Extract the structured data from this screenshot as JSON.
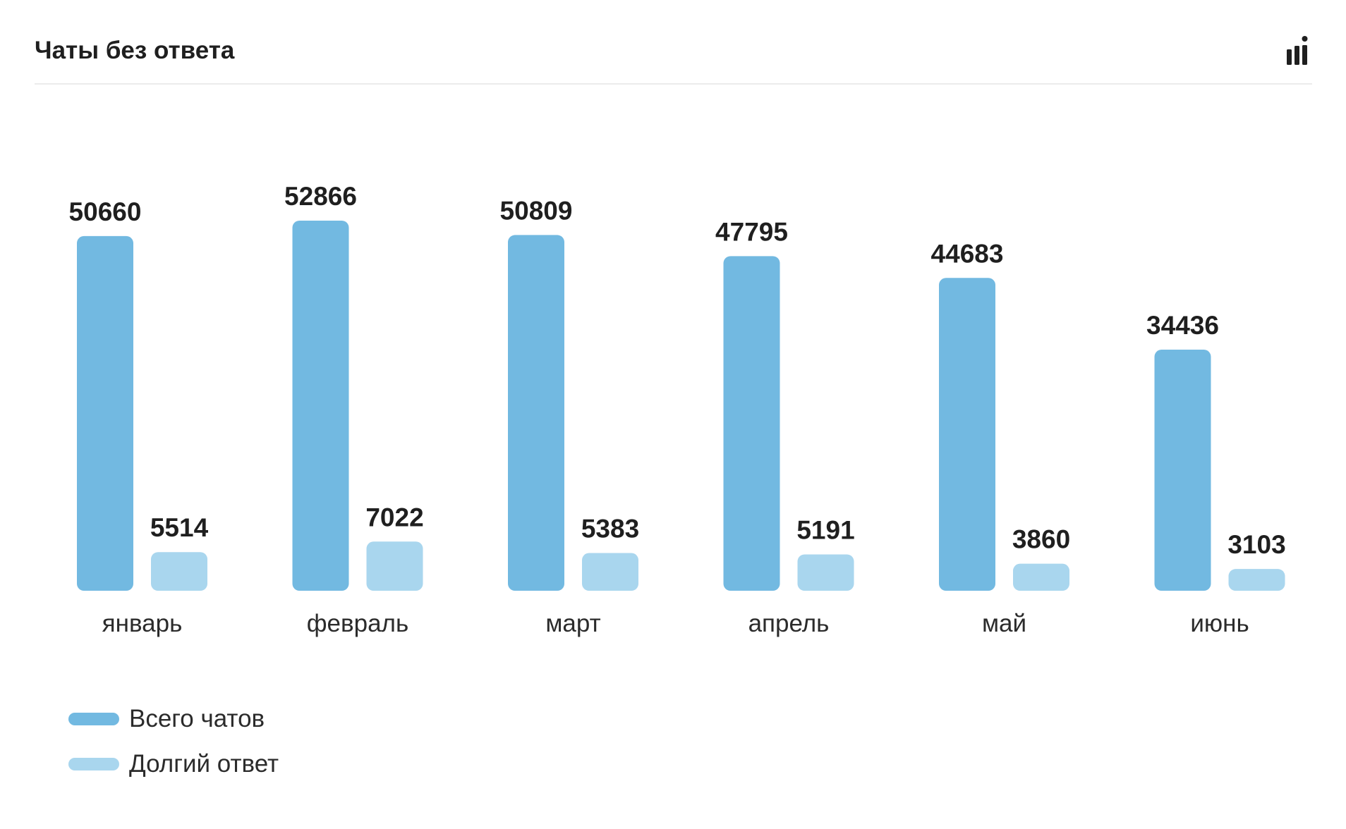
{
  "header": {
    "title": "Чаты без ответа",
    "icon": "bar-chart-icon"
  },
  "colors": {
    "total": "#72b9e1",
    "long": "#a9d6ee"
  },
  "chart_data": {
    "type": "bar",
    "title": "Чаты без ответа",
    "xlabel": "",
    "ylabel": "",
    "categories": [
      "январь",
      "февраль",
      "март",
      "апрель",
      "май",
      "июнь"
    ],
    "series": [
      {
        "name": "Всего чатов",
        "values": [
          50660,
          52866,
          50809,
          47795,
          44683,
          34436
        ]
      },
      {
        "name": "Долгий ответ",
        "values": [
          5514,
          7022,
          5383,
          5191,
          3860,
          3103
        ]
      }
    ],
    "legend": "bottom-left",
    "grid": false
  },
  "legend": [
    {
      "label": "Всего чатов"
    },
    {
      "label": "Долгий ответ"
    }
  ]
}
